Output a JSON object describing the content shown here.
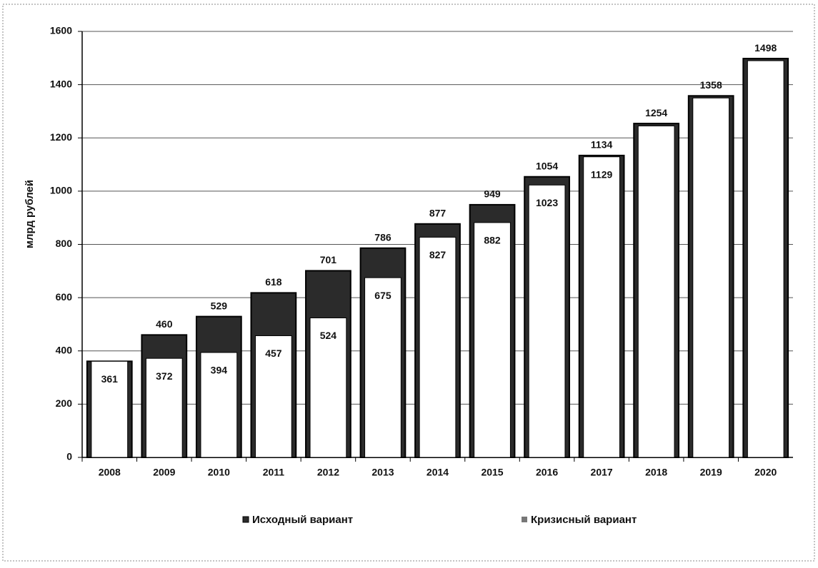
{
  "chart_data": {
    "type": "bar",
    "categories": [
      "2008",
      "2009",
      "2010",
      "2011",
      "2012",
      "2013",
      "2014",
      "2015",
      "2016",
      "2017",
      "2018",
      "2019",
      "2020"
    ],
    "y_label": "млрд рублей",
    "series": [
      {
        "name": "Исходный вариант",
        "color": "#2b2b2b",
        "values": [
          361,
          460,
          529,
          618,
          701,
          786,
          877,
          949,
          1054,
          1134,
          1254,
          1358,
          1498
        ],
        "value_labels": [
          null,
          "460",
          "529",
          "618",
          "701",
          "786",
          "877",
          "949",
          "1054",
          "1134",
          "1254",
          "1358",
          "1498"
        ]
      },
      {
        "name": "Кризисный вариант",
        "color": "#ffffff",
        "values": [
          361,
          372,
          394,
          457,
          524,
          675,
          827,
          882,
          1023,
          1129,
          1245,
          1350,
          1490
        ],
        "value_labels": [
          "361",
          "372",
          "394",
          "457",
          "524",
          "675",
          "827",
          "882",
          "1023",
          "1129",
          null,
          null,
          null
        ]
      }
    ],
    "ylim": [
      0,
      1600
    ],
    "yticks": [
      0,
      200,
      400,
      600,
      800,
      1000,
      1200,
      1400,
      1600
    ],
    "grid": true,
    "legend": "bottom"
  }
}
